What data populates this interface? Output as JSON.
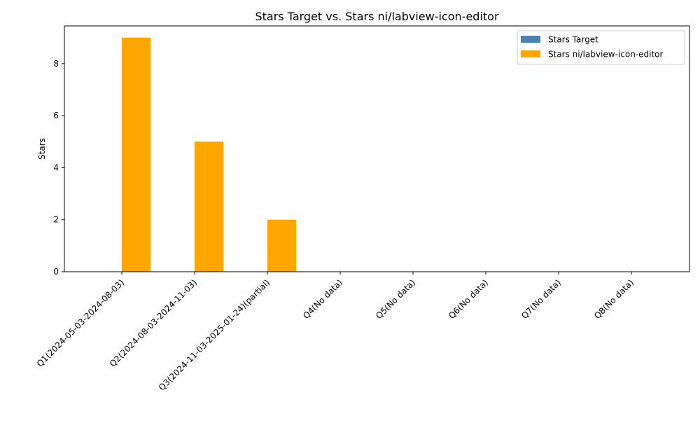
{
  "chart_data": {
    "type": "bar",
    "title": "Stars Target vs. Stars ni/labview-icon-editor",
    "xlabel": "",
    "ylabel": "Stars",
    "ylim": [
      0,
      9.45
    ],
    "yticks": [
      0,
      2,
      4,
      6,
      8
    ],
    "grid": false,
    "legend_position": "top-right",
    "categories": [
      "Q1(2024-05-03-2024-08-03)",
      "Q2(2024-08-03-2024-11-03)",
      "Q3(2024-11-03-2025-01-24)(partial)",
      "Q4(No data)",
      "Q5(No data)",
      "Q6(No data)",
      "Q7(No data)",
      "Q8(No data)"
    ],
    "series": [
      {
        "name": "Stars Target",
        "color": "#4682b4",
        "values": [
          0,
          0,
          0,
          0,
          0,
          0,
          0,
          0
        ]
      },
      {
        "name": "Stars ni/labview-icon-editor",
        "color": "#ffa500",
        "values": [
          9,
          5,
          2,
          0,
          0,
          0,
          0,
          0
        ]
      }
    ]
  }
}
